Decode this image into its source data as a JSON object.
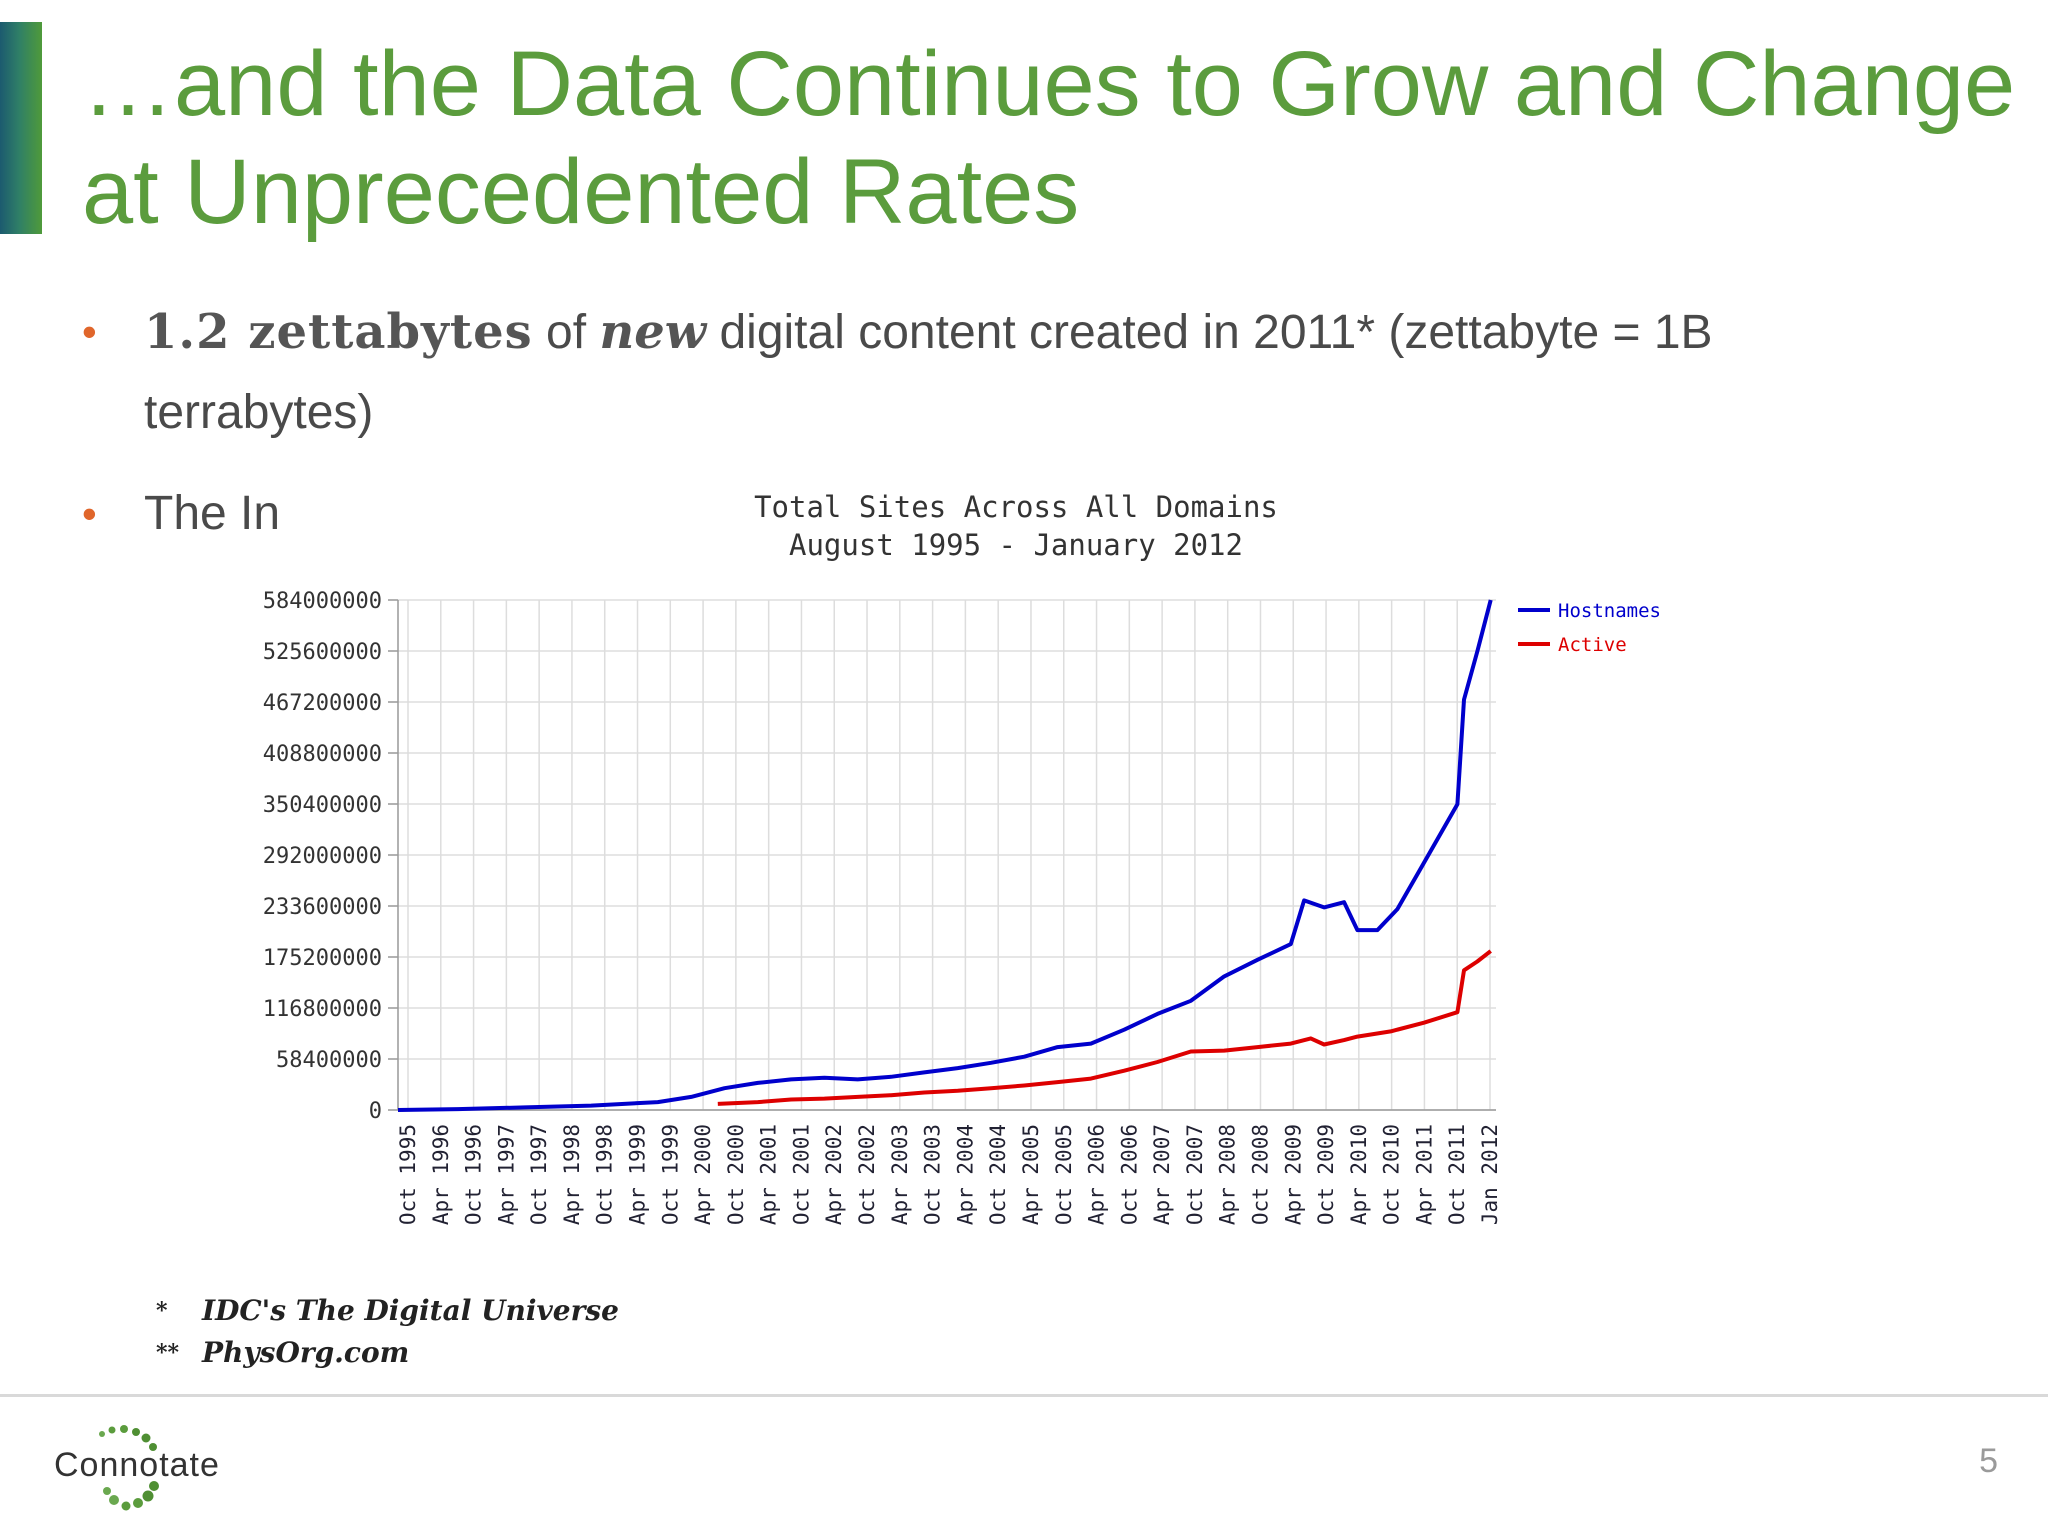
{
  "slide": {
    "title_line1": "…and the Data Continues to Grow and Change",
    "title_line2": "at Unprecedented Rates",
    "bullets": [
      {
        "marker": "•",
        "strong": "1.2 zettabytes",
        "of": " of ",
        "em": "new",
        "rest_line1": " digital content  created in 2011* (zettabyte = 1B",
        "rest_line2": "terrabytes)"
      },
      {
        "marker": "•",
        "text": "The In"
      }
    ],
    "footnotes": [
      {
        "mark": "*",
        "text": "IDC's The Digital Universe"
      },
      {
        "mark": "**",
        "text": "PhysOrg.com"
      }
    ],
    "logo_text": "Connotate",
    "page_number": "5",
    "colors": {
      "title": "#5b9c3d",
      "bullet_marker": "#e0662b",
      "hostnames": "#0000cc",
      "active": "#dd0000",
      "grid": "#e0e0e0"
    }
  },
  "chart_data": {
    "type": "line",
    "title": "Total Sites Across All Domains",
    "subtitle": "August 1995 - January 2012",
    "ylim": [
      0,
      584000000
    ],
    "y_ticks": [
      "584000000",
      "525600000",
      "467200000",
      "408800000",
      "350400000",
      "292000000",
      "233600000",
      "175200000",
      "116800000",
      "58400000",
      "0"
    ],
    "x_ticks": [
      "Oct 1995",
      "Apr 1996",
      "Oct 1996",
      "Apr 1997",
      "Oct 1997",
      "Apr 1998",
      "Oct 1998",
      "Apr 1999",
      "Oct 1999",
      "Apr 2000",
      "Oct 2000",
      "Apr 2001",
      "Oct 2001",
      "Apr 2002",
      "Oct 2002",
      "Apr 2003",
      "Oct 2003",
      "Apr 2004",
      "Oct 2004",
      "Apr 2005",
      "Oct 2005",
      "Apr 2006",
      "Oct 2006",
      "Apr 2007",
      "Oct 2007",
      "Apr 2008",
      "Oct 2008",
      "Apr 2009",
      "Oct 2009",
      "Apr 2010",
      "Oct 2010",
      "Apr 2011",
      "Oct 2011",
      "Jan 2012"
    ],
    "legend_placement": "top-right",
    "grid": true,
    "series": [
      {
        "name": "Hostnames",
        "color": "#0000cc",
        "x": [
          1995.6,
          1996.5,
          1997.5,
          1998.5,
          1999.5,
          2000.0,
          2000.5,
          2001.0,
          2001.5,
          2002.0,
          2002.5,
          2003.0,
          2003.5,
          2004.0,
          2004.5,
          2005.0,
          2005.5,
          2006.0,
          2006.5,
          2007.0,
          2007.5,
          2008.0,
          2008.5,
          2009.0,
          2009.2,
          2009.5,
          2009.8,
          2010.0,
          2010.3,
          2010.6,
          2010.9,
          2011.2,
          2011.5,
          2011.6,
          2011.8,
          2012.0
        ],
        "values": [
          0,
          1000000,
          3000000,
          5000000,
          9000000,
          15000000,
          25000000,
          31000000,
          35000000,
          37000000,
          35000000,
          38000000,
          43000000,
          48000000,
          54000000,
          61000000,
          72000000,
          76000000,
          92000000,
          110000000,
          125000000,
          153000000,
          172000000,
          190000000,
          240000000,
          232000000,
          238000000,
          206000000,
          206000000,
          230000000,
          270000000,
          310000000,
          350000000,
          470000000,
          525000000,
          584000000
        ]
      },
      {
        "name": "Active",
        "color": "#dd0000",
        "x": [
          2000.4,
          2001.0,
          2001.5,
          2002.0,
          2002.5,
          2003.0,
          2003.5,
          2004.0,
          2004.5,
          2005.0,
          2005.5,
          2006.0,
          2006.5,
          2007.0,
          2007.5,
          2008.0,
          2008.5,
          2009.0,
          2009.3,
          2009.5,
          2009.8,
          2010.0,
          2010.5,
          2011.0,
          2011.5,
          2011.6,
          2011.8,
          2012.0
        ],
        "values": [
          7000000,
          9000000,
          12000000,
          13000000,
          15000000,
          17000000,
          20000000,
          22000000,
          25000000,
          28000000,
          32000000,
          36000000,
          45000000,
          55000000,
          67000000,
          68000000,
          72000000,
          76000000,
          82000000,
          75000000,
          80000000,
          84000000,
          90000000,
          100000000,
          112000000,
          160000000,
          170000000,
          182000000
        ]
      }
    ]
  }
}
